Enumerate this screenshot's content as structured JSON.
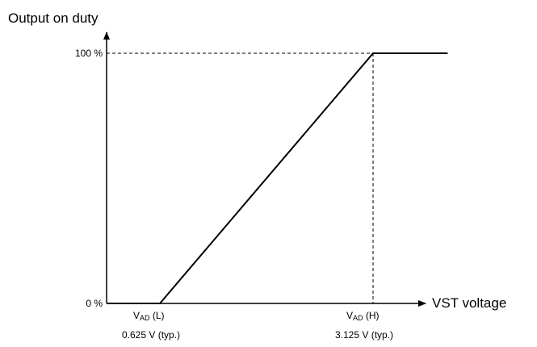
{
  "chart_data": {
    "type": "line",
    "title": "",
    "ylabel": "Output on duty",
    "xlabel": "VST voltage",
    "x_unit": "V",
    "y_unit": "%",
    "series": [
      {
        "x": [
          0,
          0.625,
          3.125,
          4.0
        ],
        "y": [
          0,
          0,
          100,
          100
        ]
      }
    ],
    "y_ticks": [
      {
        "value": 0,
        "label": "0 %"
      },
      {
        "value": 100,
        "label": "100 %"
      }
    ],
    "x_ticks": [
      {
        "value": 0.625,
        "main": "V",
        "subscript": "AD",
        "suffix": " (L)",
        "note": "0.625 V (typ.)"
      },
      {
        "value": 3.125,
        "main": "V",
        "subscript": "AD",
        "suffix": " (H)",
        "note": "3.125 V (typ.)"
      }
    ],
    "guides": [
      {
        "type": "horizontal",
        "y": 100
      },
      {
        "type": "vertical",
        "x": 3.125
      }
    ],
    "grid": false,
    "legend": "none",
    "line_color": "#000000"
  }
}
